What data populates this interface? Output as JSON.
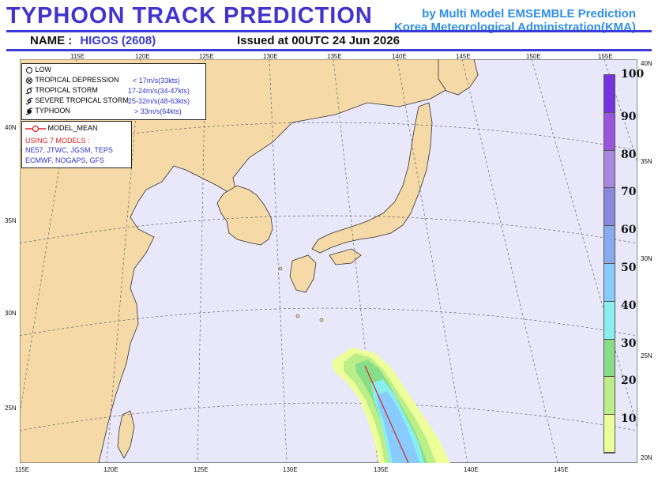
{
  "header": {
    "title": "TYPHOON TRACK PREDICTION",
    "subtitle_line1": "by Multi Model EMSEMBLE Prediction",
    "subtitle_line2": "Korea Meteorological Administration(KMA)",
    "name_label": "NAME :",
    "name_value": "HIGOS (2608)",
    "issued": "Issued at 00UTC 24 Jun 2026"
  },
  "colors": {
    "title": "#4433cc",
    "agency": "#2f8fe8",
    "ocean": "#e8e8fa",
    "land": "#f5d9a6",
    "coast": "#333333",
    "track": "#dd2222"
  },
  "legend": {
    "intensity": [
      {
        "icon": "low-icon",
        "label": "LOW",
        "range": ""
      },
      {
        "icon": "tropical-depression-icon",
        "label": "TROPICAL DEPRESSION",
        "range": "< 17m/s(33kts)"
      },
      {
        "icon": "tropical-storm-icon",
        "label": "TROPICAL STORM",
        "range": "17-24m/s(34-47kts)"
      },
      {
        "icon": "severe-tropical-storm-icon",
        "label": "SEVERE TROPICAL STORM",
        "range": "25-32m/s(48-63kts)"
      },
      {
        "icon": "typhoon-icon",
        "label": "TYPHOON",
        "range": "> 33m/s(64kts)"
      }
    ],
    "model_mean_label": "MODEL_MEAN",
    "using_label": "USING 7 MODELS :",
    "models_line1": "NE57, JTWC, JGSM, TEPS",
    "models_line2": "ECMWF, NOGAPS, GFS"
  },
  "probability_scale": {
    "labels": [
      "100",
      "90",
      "80",
      "70",
      "60",
      "50",
      "40",
      "30",
      "20",
      "10"
    ],
    "colors": [
      "#7733dd",
      "#9955dd",
      "#aa88dd",
      "#8888dd",
      "#88aaee",
      "#88ccff",
      "#88eeee",
      "#88dd88",
      "#bbee88",
      "#eeff99"
    ]
  },
  "axes": {
    "top_lon": [
      "115E",
      "120E",
      "125E",
      "130E",
      "135E",
      "140E",
      "145E",
      "150E",
      "155E"
    ],
    "bottom_lon": [
      "115E",
      "120E",
      "125E",
      "130E",
      "135E",
      "140E",
      "145E"
    ],
    "left_lat": [
      "40N",
      "35N",
      "30N",
      "25N"
    ],
    "right_lat": [
      "40N",
      "35N",
      "30N",
      "25N",
      "20N"
    ]
  },
  "track": {
    "model_mean": [
      [
        134.5,
        27.1
      ],
      [
        136.5,
        19.9
      ]
    ]
  }
}
